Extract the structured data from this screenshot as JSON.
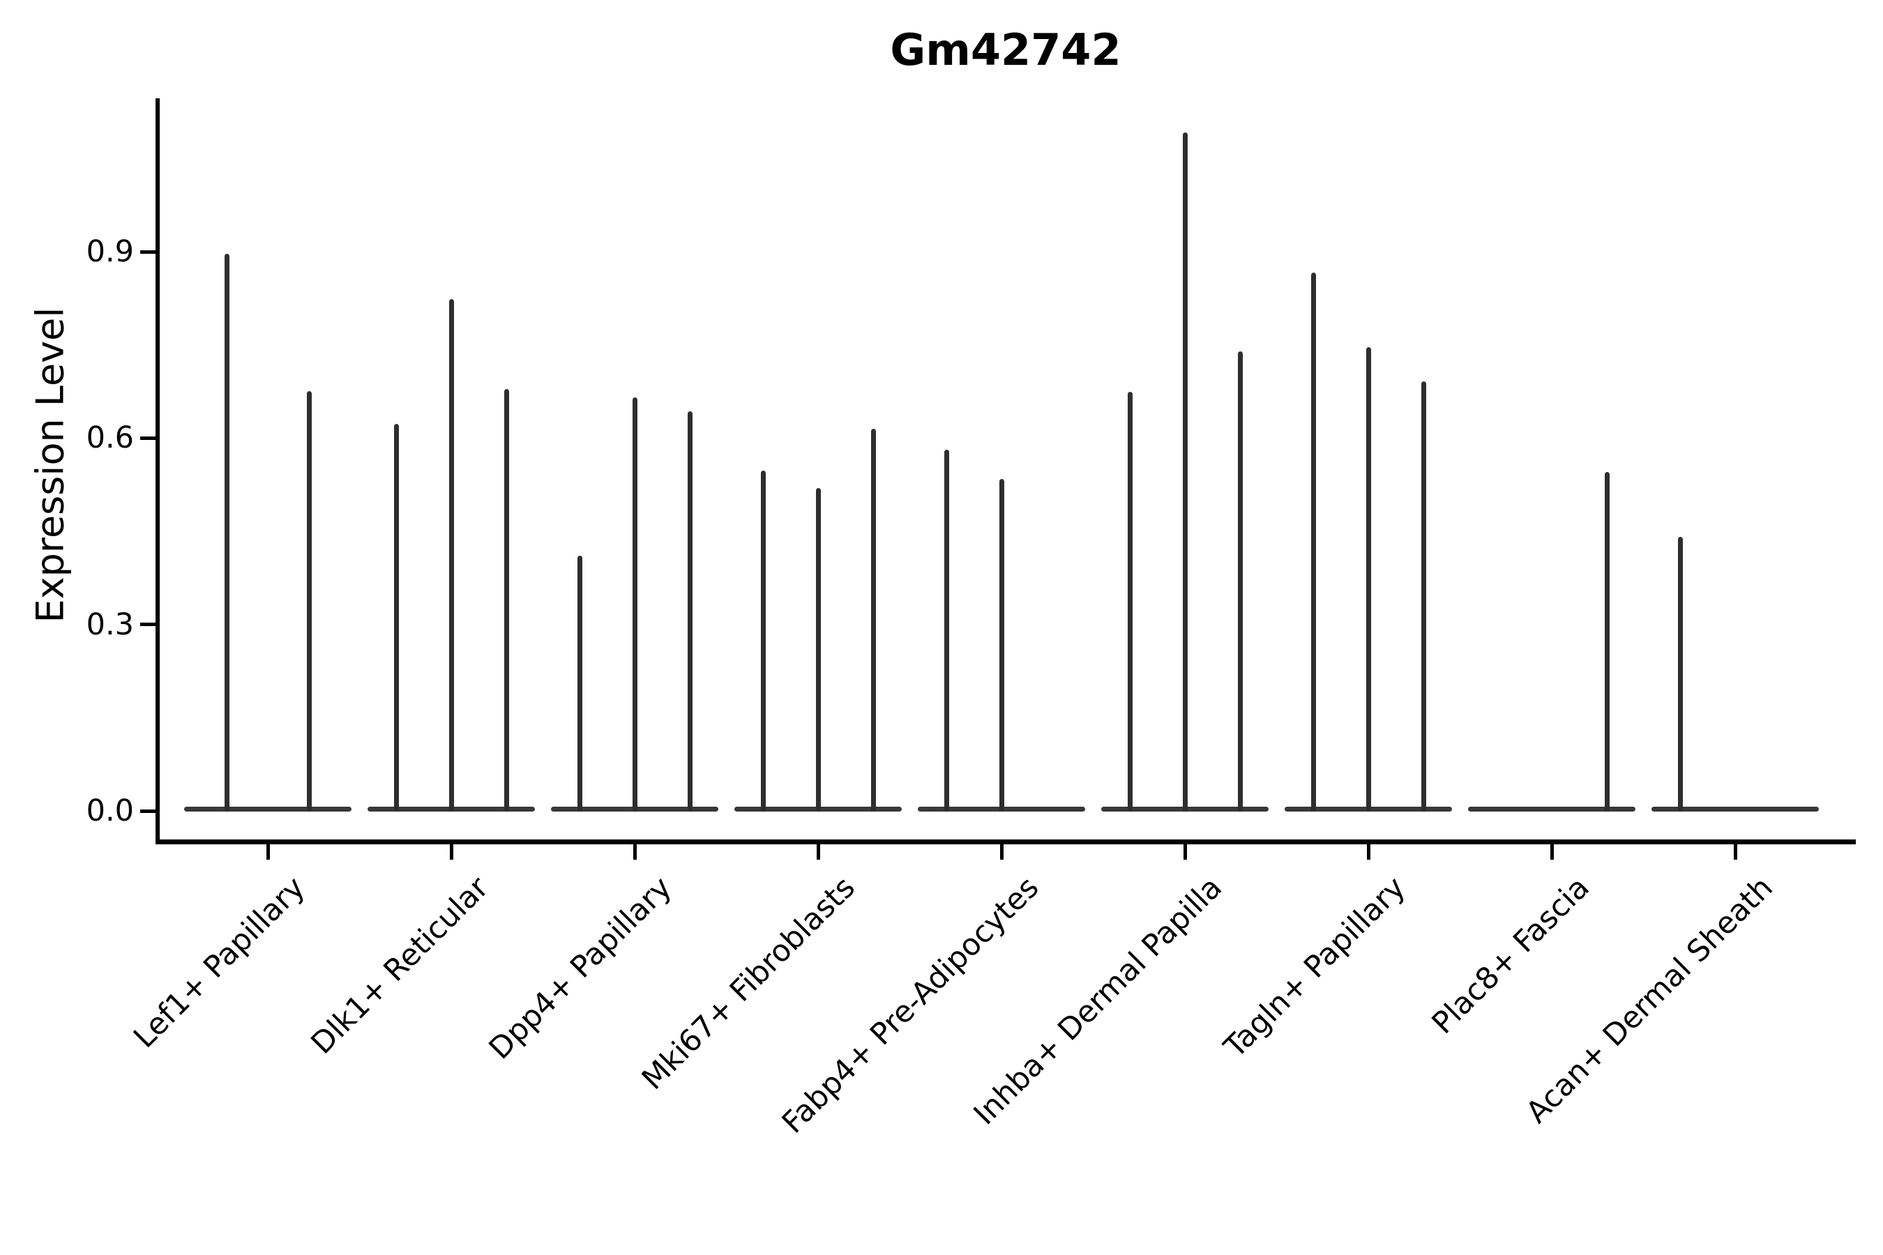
{
  "title": "Gm42742",
  "chart_data": {
    "type": "violin",
    "title": "Gm42742",
    "xlabel": "",
    "ylabel": "Expression Level",
    "ylim": [
      -0.05,
      1.15
    ],
    "yticks": [
      0,
      0.3,
      0.6,
      0.9
    ],
    "ytick_labels": [
      "0.0",
      "0.3",
      "0.6",
      "0.9"
    ],
    "grid": false,
    "legend": "none",
    "categories": [
      "Lef1+ Papillary",
      "Dlk1+ Reticular",
      "Dpp4+ Papillary",
      "Mki67+ Fibroblasts",
      "Fabp4+ Pre-Adipocytes",
      "Inhba+ Dermal Papilla",
      "Tagln+ Papillary",
      "Plac8+ Fascia",
      "Acan+ Dermal Sheath"
    ],
    "violins": [
      {
        "category": "Lef1+ Papillary",
        "spikes": [
          {
            "offset": -59,
            "peak": 0.897
          },
          {
            "offset": 59,
            "peak": 0.676
          }
        ]
      },
      {
        "category": "Dlk1+ Reticular",
        "spikes": [
          {
            "offset": -79,
            "peak": 0.623
          },
          {
            "offset": 0,
            "peak": 0.824
          },
          {
            "offset": 79,
            "peak": 0.679
          }
        ]
      },
      {
        "category": "Dpp4+ Papillary",
        "spikes": [
          {
            "offset": -79,
            "peak": 0.411
          },
          {
            "offset": 0,
            "peak": 0.666
          },
          {
            "offset": 79,
            "peak": 0.643
          }
        ]
      },
      {
        "category": "Mki67+ Fibroblasts",
        "spikes": [
          {
            "offset": -79,
            "peak": 0.548
          },
          {
            "offset": 0,
            "peak": 0.52
          },
          {
            "offset": 79,
            "peak": 0.615
          }
        ]
      },
      {
        "category": "Fabp4+ Pre-Adipocytes",
        "spikes": [
          {
            "offset": -79,
            "peak": 0.581
          },
          {
            "offset": 0,
            "peak": 0.534
          }
        ]
      },
      {
        "category": "Inhba+ Dermal Papilla",
        "spikes": [
          {
            "offset": -79,
            "peak": 0.674
          },
          {
            "offset": 0,
            "peak": 1.092
          },
          {
            "offset": 79,
            "peak": 0.74
          }
        ]
      },
      {
        "category": "Tagln+ Papillary",
        "spikes": [
          {
            "offset": -79,
            "peak": 0.866
          },
          {
            "offset": 0,
            "peak": 0.746
          },
          {
            "offset": 79,
            "peak": 0.691
          }
        ]
      },
      {
        "category": "Plac8+ Fascia",
        "spikes": [
          {
            "offset": 79,
            "peak": 0.545
          }
        ]
      },
      {
        "category": "Acan+ Dermal Sheath",
        "spikes": [
          {
            "offset": -79,
            "peak": 0.441
          }
        ]
      }
    ]
  }
}
